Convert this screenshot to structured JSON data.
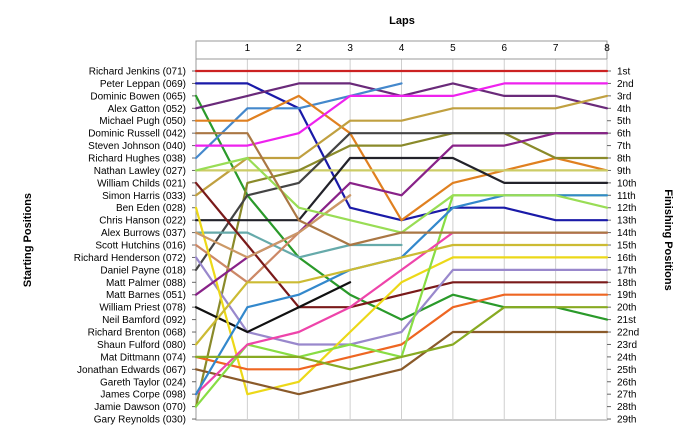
{
  "chart_data": {
    "type": "line",
    "title": "",
    "xlabel": "Laps",
    "ylabel_left": "Starting Positions",
    "ylabel_right": "Finishing Positions",
    "x_ticks": [
      "1",
      "2",
      "3",
      "4",
      "5",
      "6",
      "7",
      "8"
    ],
    "xlim": [
      0,
      8
    ],
    "ylim": [
      1,
      29
    ],
    "y_axis_inverted": true,
    "grid": "vertical",
    "legend": "none",
    "starting_labels": [
      "Richard Jenkins (071)",
      "Peter Leppan (069)",
      "Dominic Bowen (065)",
      "Alex Gatton (052)",
      "Michael Pugh (050)",
      "Dominic Russell (042)",
      "Steven Johnson (040)",
      "Richard Hughes (038)",
      "Nathan Lawley (027)",
      "William Childs (021)",
      "Simon Harris (033)",
      "Ben Eden (028)",
      "Chris Hanson (022)",
      "Alex Burrows (037)",
      "Scott Hutchins (016)",
      "Richard Henderson (072)",
      "Daniel Payne (018)",
      "Matt Palmer (088)",
      "Matt Barnes (051)",
      "William Priest (078)",
      "Neil Bamford (092)",
      "Richard Brenton (068)",
      "Shaun Fulford (080)",
      "Mat Dittmann (074)",
      "Jonathan Edwards (067)",
      "Gareth Taylor (024)",
      "James Corpe (098)",
      "Jamie Dawson (070)",
      "Gary Reynolds (030)"
    ],
    "finishing_labels": [
      "1st",
      "2nd",
      "3rd",
      "4th",
      "5th",
      "6th",
      "7th",
      "8th",
      "9th",
      "10th",
      "11th",
      "12th",
      "13th",
      "14th",
      "15th",
      "16th",
      "17th",
      "18th",
      "19th",
      "20th",
      "21st",
      "22nd",
      "23rd",
      "24th",
      "25th",
      "26th",
      "27th",
      "28th",
      "29th"
    ],
    "series": [
      {
        "color": "#cc2222",
        "x": [
          0,
          1,
          2,
          3,
          4,
          5,
          6,
          7,
          8
        ],
        "y": [
          1,
          1,
          1,
          1,
          1,
          1,
          1,
          1,
          1
        ]
      },
      {
        "color": "#1a1aa8",
        "x": [
          0,
          1,
          2,
          3,
          4,
          5,
          6,
          7,
          8
        ],
        "y": [
          2,
          2,
          4,
          12,
          13,
          12,
          12,
          13,
          13
        ]
      },
      {
        "color": "#2a9a2a",
        "x": [
          0,
          1,
          2,
          3,
          4,
          5,
          6,
          7,
          8
        ],
        "y": [
          3,
          11,
          16,
          19,
          21,
          19,
          20,
          20,
          21
        ]
      },
      {
        "color": "#6a2a7a",
        "x": [
          0,
          1,
          2,
          3,
          4,
          5,
          6,
          7,
          8
        ],
        "y": [
          4,
          3,
          2,
          2,
          3,
          2,
          3,
          3,
          4
        ]
      },
      {
        "color": "#4488cc",
        "x": [
          0,
          1,
          2,
          3,
          4
        ],
        "y": [
          8,
          4,
          4,
          3,
          2
        ]
      },
      {
        "color": "#e08020",
        "x": [
          0,
          1,
          2,
          3,
          4,
          5,
          6,
          7,
          8
        ],
        "y": [
          5,
          5,
          3,
          6,
          13,
          10,
          9,
          8,
          9
        ]
      },
      {
        "color": "#ee22ee",
        "x": [
          0,
          1,
          2,
          3,
          4,
          5,
          6,
          7,
          8
        ],
        "y": [
          7,
          7,
          6,
          3,
          3,
          3,
          2,
          2,
          2
        ]
      },
      {
        "color": "#c0a040",
        "x": [
          0,
          1,
          2,
          3,
          4,
          5,
          6,
          7,
          8
        ],
        "y": [
          11,
          8,
          8,
          5,
          5,
          4,
          4,
          4,
          3
        ]
      },
      {
        "color": "#cccc66",
        "x": [
          0,
          1,
          2,
          3,
          4,
          5,
          6,
          7,
          8
        ],
        "y": [
          9,
          9,
          9,
          9,
          9,
          9,
          9,
          9,
          9
        ]
      },
      {
        "color": "#8a8a2a",
        "x": [
          0,
          1,
          2,
          3,
          4,
          5,
          6,
          7,
          8
        ],
        "y": [
          28,
          10,
          9,
          7,
          7,
          6,
          6,
          8,
          8
        ]
      },
      {
        "color": "#444444",
        "x": [
          0,
          1,
          2,
          3,
          4,
          5,
          6,
          7,
          8
        ],
        "y": [
          17,
          11,
          10,
          6,
          6,
          6,
          6,
          6,
          6
        ]
      },
      {
        "color": "#22222a",
        "x": [
          0,
          1,
          2,
          3,
          4,
          5,
          6,
          7,
          8
        ],
        "y": [
          13,
          13,
          13,
          8,
          8,
          8,
          10,
          10,
          10
        ]
      },
      {
        "color": "#66aaaa",
        "x": [
          0,
          1,
          2,
          3,
          4
        ],
        "y": [
          14,
          14,
          16,
          15,
          15
        ]
      },
      {
        "color": "#cc8866",
        "x": [
          0,
          1,
          2,
          3
        ],
        "y": [
          15,
          18,
          14,
          11
        ]
      },
      {
        "color": "#7a1a1a",
        "x": [
          0,
          1,
          2,
          3,
          4,
          5,
          6,
          7,
          8
        ],
        "y": [
          10,
          15,
          20,
          20,
          19,
          18,
          18,
          18,
          18
        ]
      },
      {
        "color": "#9988cc",
        "x": [
          0,
          1,
          2,
          3,
          4,
          5,
          6,
          7,
          8
        ],
        "y": [
          16,
          22,
          23,
          23,
          22,
          17,
          17,
          17,
          17
        ]
      },
      {
        "color": "#111111",
        "x": [
          0,
          1,
          2,
          3
        ],
        "y": [
          20,
          22,
          20,
          18
        ]
      },
      {
        "color": "#ecd818",
        "x": [
          0,
          1,
          2,
          3,
          4,
          5,
          6,
          7,
          8
        ],
        "y": [
          12,
          27,
          26,
          22,
          18,
          16,
          16,
          16,
          16
        ]
      },
      {
        "color": "#ee6622",
        "x": [
          0,
          1,
          2,
          3,
          4,
          5,
          6,
          7,
          8
        ],
        "y": [
          24,
          25,
          25,
          24,
          23,
          20,
          19,
          19,
          19
        ]
      },
      {
        "color": "#8a5a2a",
        "x": [
          0,
          1,
          2,
          3,
          4,
          5,
          6,
          7,
          8
        ],
        "y": [
          25,
          26,
          27,
          26,
          25,
          22,
          22,
          22,
          22
        ]
      },
      {
        "color": "#88dd44",
        "x": [
          0,
          1,
          2,
          3,
          4,
          5,
          6,
          7,
          8
        ],
        "y": [
          28,
          23,
          24,
          23,
          24,
          11,
          11,
          11,
          11
        ]
      },
      {
        "color": "#ee44aa",
        "x": [
          0,
          1,
          2,
          3,
          4,
          5,
          6,
          7,
          8
        ],
        "y": [
          27,
          23,
          22,
          20,
          17,
          14,
          14,
          14,
          14
        ]
      },
      {
        "color": "#3388cc",
        "x": [
          0,
          1,
          2,
          3,
          4,
          5,
          6,
          7,
          8
        ],
        "y": [
          27,
          20,
          19,
          17,
          16,
          12,
          11,
          11,
          11
        ]
      },
      {
        "color": "#ccbb33",
        "x": [
          0,
          1,
          2,
          3,
          4,
          5,
          6,
          7,
          8
        ],
        "y": [
          23,
          18,
          18,
          17,
          16,
          15,
          15,
          15,
          15
        ]
      },
      {
        "color": "#882288",
        "x": [
          0,
          1,
          2,
          3,
          4,
          5,
          6,
          7,
          8
        ],
        "y": [
          19,
          16,
          14,
          10,
          11,
          7,
          7,
          6,
          6
        ]
      },
      {
        "color": "#cc9966",
        "x": [
          0,
          1,
          2,
          3
        ],
        "y": [
          14,
          16,
          14,
          11
        ]
      },
      {
        "color": "#99dd55",
        "x": [
          0,
          1,
          2,
          3,
          4,
          5,
          6,
          7,
          8
        ],
        "y": [
          9,
          8,
          12,
          13,
          14,
          11,
          11,
          11,
          12
        ]
      },
      {
        "color": "#aa7744",
        "x": [
          0,
          1,
          2,
          3,
          4,
          5,
          6,
          7,
          8
        ],
        "y": [
          6,
          6,
          13,
          15,
          14,
          14,
          14,
          14,
          14
        ]
      },
      {
        "color": "#88aa22",
        "x": [
          0,
          1,
          2,
          3,
          4,
          5,
          6,
          7,
          8
        ],
        "y": [
          24,
          24,
          24,
          25,
          24,
          23,
          20,
          20,
          20
        ]
      }
    ]
  }
}
